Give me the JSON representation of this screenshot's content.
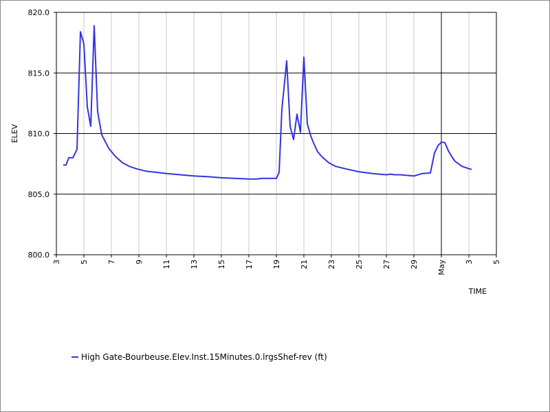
{
  "chart_data": {
    "type": "line",
    "ylabel": "ELEV",
    "xlabel": "TIME",
    "ylim": [
      800.0,
      820.0
    ],
    "yticks": [
      "800.0",
      "805.0",
      "810.0",
      "815.0",
      "820.0"
    ],
    "xlim_days": [
      3,
      33
    ],
    "xticks": [
      {
        "day": 3,
        "label": "3"
      },
      {
        "day": 5,
        "label": "5"
      },
      {
        "day": 7,
        "label": "7"
      },
      {
        "day": 9,
        "label": "9"
      },
      {
        "day": 11,
        "label": "11"
      },
      {
        "day": 13,
        "label": "13"
      },
      {
        "day": 15,
        "label": "15"
      },
      {
        "day": 17,
        "label": "17"
      },
      {
        "day": 19,
        "label": "19"
      },
      {
        "day": 21,
        "label": "21"
      },
      {
        "day": 23,
        "label": "23"
      },
      {
        "day": 25,
        "label": "25"
      },
      {
        "day": 27,
        "label": "27"
      },
      {
        "day": 29,
        "label": "29"
      },
      {
        "day": 31,
        "label": "May"
      },
      {
        "day": 33,
        "label": "3"
      },
      {
        "day": 35,
        "label": "5"
      }
    ],
    "grid": true,
    "series": [
      {
        "name": "High Gate-Bourbeuse.Elev.Inst.15Minutes.0.lrgsShef-rev (ft)",
        "color": "#3333dd",
        "x": [
          3.5,
          3.7,
          3.9,
          4.2,
          4.5,
          4.75,
          5.0,
          5.25,
          5.5,
          5.75,
          6.0,
          6.3,
          6.8,
          7.3,
          7.8,
          8.3,
          8.8,
          9.5,
          10.3,
          11.0,
          12.0,
          13.0,
          14.0,
          15.0,
          16.0,
          17.0,
          17.5,
          18.0,
          18.5,
          19.0,
          19.2,
          19.4,
          19.75,
          20.0,
          20.25,
          20.5,
          20.75,
          21.0,
          21.25,
          21.5,
          21.75,
          22.0,
          22.3,
          22.8,
          23.3,
          24.0,
          25.0,
          26.0,
          27.0,
          27.3,
          27.6,
          28.0,
          29.0,
          29.6,
          30.2,
          30.5,
          30.75,
          31.0,
          31.25,
          31.5,
          31.75,
          32.0,
          32.5,
          33.0,
          33.2
        ],
        "y": [
          807.4,
          807.4,
          808.0,
          808.0,
          808.7,
          818.4,
          817.4,
          812.2,
          810.6,
          818.9,
          811.8,
          809.9,
          808.8,
          808.1,
          807.6,
          807.3,
          807.1,
          806.9,
          806.8,
          806.7,
          806.6,
          806.5,
          806.45,
          806.35,
          806.3,
          806.25,
          806.25,
          806.3,
          806.3,
          806.3,
          806.8,
          812.0,
          816.0,
          810.6,
          809.5,
          811.6,
          810.1,
          816.3,
          810.8,
          809.8,
          809.1,
          808.5,
          808.1,
          807.6,
          807.3,
          807.1,
          806.85,
          806.7,
          806.6,
          806.65,
          806.6,
          806.6,
          806.5,
          806.7,
          806.75,
          808.4,
          809.0,
          809.3,
          809.25,
          808.6,
          808.1,
          807.7,
          807.3,
          807.1,
          807.05
        ]
      }
    ],
    "legend_position": "bottom-left"
  }
}
